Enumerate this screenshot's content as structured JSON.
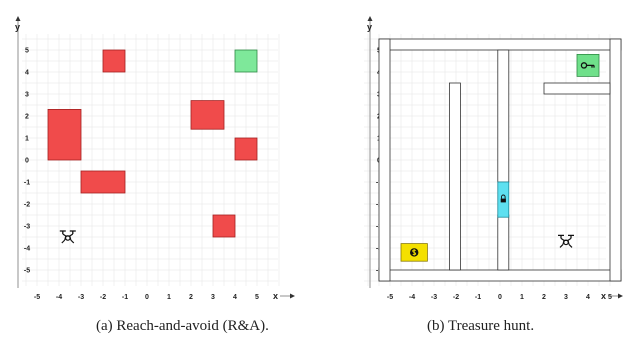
{
  "panels": [
    {
      "id": "a",
      "caption": "(a) Reach-and-avoid (R&A).",
      "axes": {
        "xlabel": "x",
        "ylabel": "y",
        "xticks": [
          -5,
          -4,
          -3,
          -2,
          -1,
          0,
          1,
          2,
          3,
          4,
          5
        ],
        "yticks": [
          5,
          4,
          3,
          2,
          1,
          0,
          -1,
          -2,
          -3,
          -4,
          -5
        ]
      },
      "obstacles": [
        {
          "x0": -2.0,
          "x1": -1.0,
          "y0": 4.0,
          "y1": 5.0
        },
        {
          "x0": -4.5,
          "x1": -3.0,
          "y0": 0.0,
          "y1": 2.3
        },
        {
          "x0": -3.0,
          "x1": -1.0,
          "y0": -1.5,
          "y1": -0.5
        },
        {
          "x0": 2.0,
          "x1": 3.5,
          "y0": 1.4,
          "y1": 2.7
        },
        {
          "x0": 4.0,
          "x1": 5.0,
          "y0": 0.0,
          "y1": 1.0
        },
        {
          "x0": 3.0,
          "x1": 4.0,
          "y0": -3.5,
          "y1": -2.5
        }
      ],
      "goal": {
        "x0": 4.0,
        "x1": 5.0,
        "y0": 4.0,
        "y1": 5.0
      },
      "drone": {
        "x": -3.6,
        "y": -3.5
      }
    },
    {
      "id": "b",
      "caption": "(b) Treasure hunt.",
      "axes": {
        "xlabel": "x",
        "ylabel": "y",
        "xticks": [
          -5,
          -4,
          -3,
          -2,
          -1,
          0,
          1,
          2,
          3,
          4,
          5
        ],
        "yticks": [
          5,
          4,
          3,
          2,
          1,
          0,
          -1,
          -2,
          -3,
          -4,
          -5
        ]
      },
      "walls": [
        {
          "x0": -5.5,
          "x1": 5.5,
          "y0": 5.0,
          "y1": 5.5
        },
        {
          "x0": -5.5,
          "x1": 5.5,
          "y0": -5.5,
          "y1": -5.0
        },
        {
          "x0": -5.5,
          "x1": -5.0,
          "y0": -5.5,
          "y1": 5.5
        },
        {
          "x0": 5.0,
          "x1": 5.5,
          "y0": -5.5,
          "y1": 5.5
        },
        {
          "x0": -2.3,
          "x1": -1.8,
          "y0": -5.0,
          "y1": 3.5
        },
        {
          "x0": -0.1,
          "x1": 0.4,
          "y0": -1.0,
          "y1": 5.0
        },
        {
          "x0": -0.1,
          "x1": 0.4,
          "y0": -5.0,
          "y1": -2.5
        },
        {
          "x0": 2.0,
          "x1": 5.0,
          "y0": 3.0,
          "y1": 3.5
        }
      ],
      "door": {
        "x0": -0.1,
        "x1": 0.4,
        "y0": -2.6,
        "y1": -1.0,
        "color": "#5ee0f0",
        "icon": "lock-icon"
      },
      "key": {
        "x0": 3.5,
        "x1": 4.5,
        "y0": 3.8,
        "y1": 4.8,
        "color": "#6fe08a",
        "icon": "key-icon"
      },
      "treasure": {
        "x0": -4.5,
        "x1": -3.3,
        "y0": -4.6,
        "y1": -3.8,
        "color": "#f4e000",
        "icon": "coin-icon"
      },
      "drone": {
        "x": 3.0,
        "y": -3.7
      }
    }
  ],
  "colors": {
    "obstacle": "#f04b4b",
    "goal": "#7ee89a",
    "wall": "#ffffff",
    "wall_stroke": "#333333",
    "grid": "#e6e6e6",
    "axis": "#777777"
  }
}
